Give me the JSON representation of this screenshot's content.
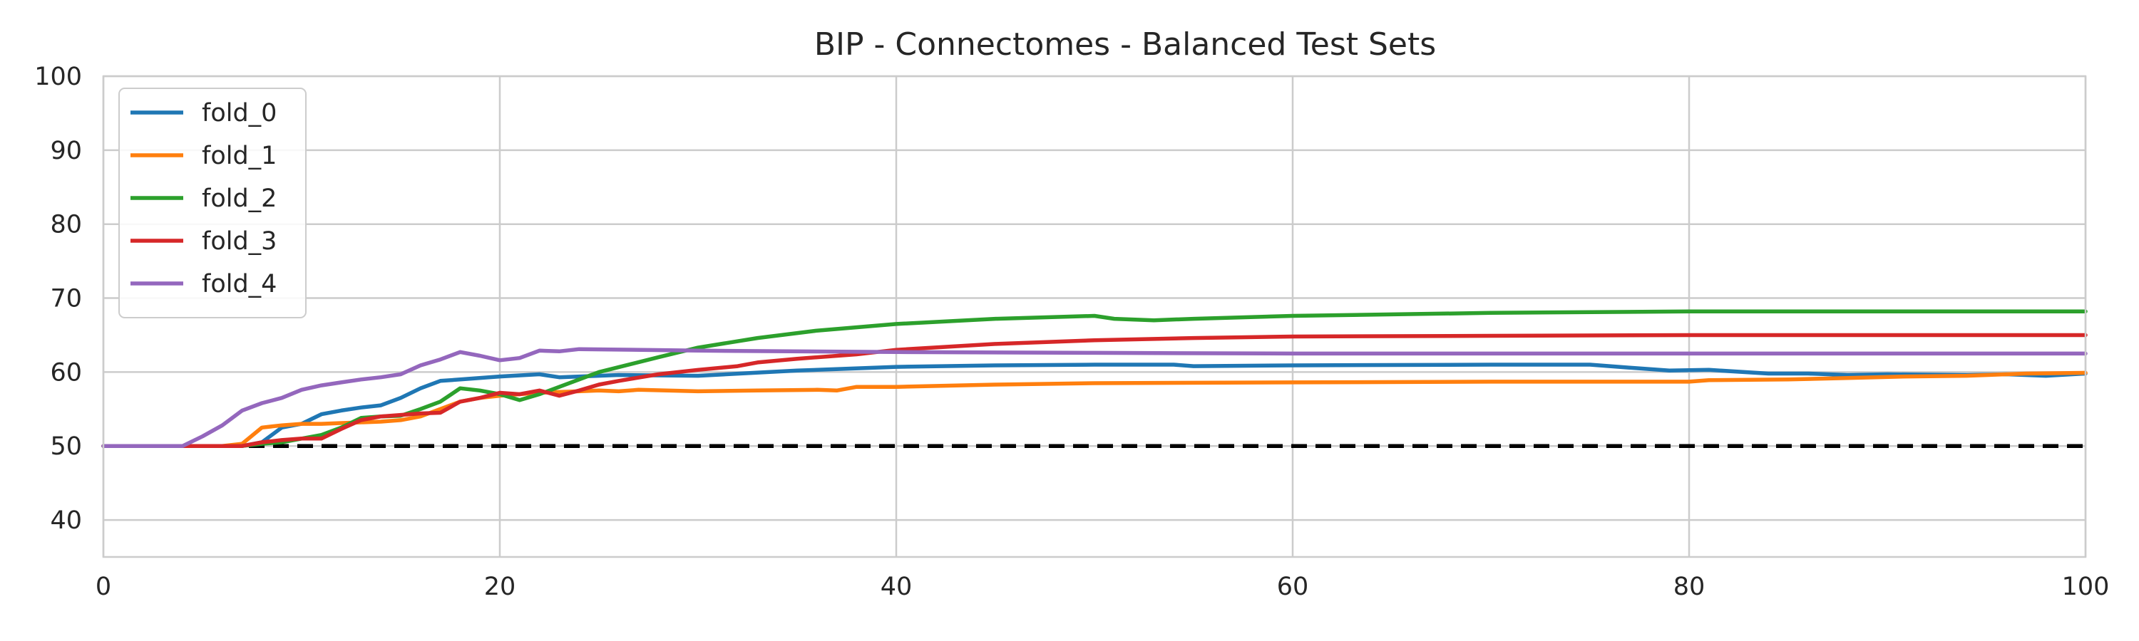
{
  "chart_data": {
    "type": "line",
    "title": "BIP - Connectomes - Balanced Test Sets",
    "xlabel": "",
    "ylabel": "",
    "xlim": [
      0,
      100
    ],
    "ylim": [
      35,
      100
    ],
    "xticks": [
      0,
      20,
      40,
      60,
      80,
      100
    ],
    "yticks": [
      40,
      50,
      60,
      70,
      80,
      90,
      100
    ],
    "grid": true,
    "legend_position": "top-left",
    "baseline": {
      "y": 50,
      "style": "dashed",
      "color": "#000000"
    },
    "series": [
      {
        "name": "fold_0",
        "color": "#1f77b4",
        "points": [
          [
            0,
            50
          ],
          [
            7,
            50
          ],
          [
            8,
            50.5
          ],
          [
            9,
            52.5
          ],
          [
            10,
            53
          ],
          [
            11,
            54.3
          ],
          [
            12,
            54.8
          ],
          [
            13,
            55.2
          ],
          [
            14,
            55.5
          ],
          [
            15,
            56.5
          ],
          [
            16,
            57.8
          ],
          [
            17,
            58.8
          ],
          [
            18,
            59
          ],
          [
            20,
            59.4
          ],
          [
            22,
            59.7
          ],
          [
            23,
            59.3
          ],
          [
            26,
            59.6
          ],
          [
            30,
            59.5
          ],
          [
            35,
            60.2
          ],
          [
            40,
            60.7
          ],
          [
            45,
            60.9
          ],
          [
            50,
            61
          ],
          [
            54,
            61
          ],
          [
            55,
            60.8
          ],
          [
            60,
            60.9
          ],
          [
            70,
            61
          ],
          [
            75,
            61
          ],
          [
            77,
            60.6
          ],
          [
            79,
            60.2
          ],
          [
            81,
            60.3
          ],
          [
            84,
            59.8
          ],
          [
            86,
            59.8
          ],
          [
            88,
            59.6
          ],
          [
            90,
            59.7
          ],
          [
            94,
            59.6
          ],
          [
            96,
            59.7
          ],
          [
            98,
            59.5
          ],
          [
            100,
            59.8
          ]
        ]
      },
      {
        "name": "fold_1",
        "color": "#ff7f0e",
        "points": [
          [
            0,
            50
          ],
          [
            6,
            50
          ],
          [
            7,
            50.3
          ],
          [
            8,
            52.5
          ],
          [
            9,
            52.8
          ],
          [
            10,
            53
          ],
          [
            11,
            53
          ],
          [
            12,
            53.1
          ],
          [
            13,
            53.2
          ],
          [
            14,
            53.3
          ],
          [
            15,
            53.5
          ],
          [
            16,
            54
          ],
          [
            17,
            55
          ],
          [
            18,
            56
          ],
          [
            19,
            56.5
          ],
          [
            20,
            56.8
          ],
          [
            21,
            57
          ],
          [
            22,
            57.2
          ],
          [
            23,
            57.3
          ],
          [
            24,
            57.4
          ],
          [
            25,
            57.5
          ],
          [
            26,
            57.4
          ],
          [
            27,
            57.6
          ],
          [
            30,
            57.4
          ],
          [
            33,
            57.5
          ],
          [
            36,
            57.6
          ],
          [
            37,
            57.5
          ],
          [
            38,
            58
          ],
          [
            40,
            58
          ],
          [
            45,
            58.3
          ],
          [
            50,
            58.5
          ],
          [
            60,
            58.6
          ],
          [
            70,
            58.7
          ],
          [
            80,
            58.7
          ],
          [
            81,
            58.9
          ],
          [
            85,
            59
          ],
          [
            88,
            59.2
          ],
          [
            91,
            59.4
          ],
          [
            94,
            59.5
          ],
          [
            97,
            59.8
          ],
          [
            100,
            59.9
          ]
        ]
      },
      {
        "name": "fold_2",
        "color": "#2ca02c",
        "points": [
          [
            0,
            50
          ],
          [
            7,
            50
          ],
          [
            8,
            50.3
          ],
          [
            9,
            50.5
          ],
          [
            10,
            51
          ],
          [
            11,
            51.5
          ],
          [
            12,
            52.5
          ],
          [
            13,
            53.8
          ],
          [
            14,
            54
          ],
          [
            15,
            54.1
          ],
          [
            16,
            55
          ],
          [
            17,
            56
          ],
          [
            18,
            57.8
          ],
          [
            19,
            57.5
          ],
          [
            20,
            57
          ],
          [
            21,
            56.2
          ],
          [
            22,
            57
          ],
          [
            23,
            58
          ],
          [
            24,
            59
          ],
          [
            25,
            60
          ],
          [
            28,
            62
          ],
          [
            30,
            63.3
          ],
          [
            33,
            64.6
          ],
          [
            36,
            65.6
          ],
          [
            40,
            66.5
          ],
          [
            45,
            67.2
          ],
          [
            50,
            67.6
          ],
          [
            51,
            67.2
          ],
          [
            53,
            67
          ],
          [
            55,
            67.2
          ],
          [
            60,
            67.6
          ],
          [
            70,
            68
          ],
          [
            80,
            68.2
          ],
          [
            90,
            68.2
          ],
          [
            100,
            68.2
          ]
        ]
      },
      {
        "name": "fold_3",
        "color": "#d62728",
        "points": [
          [
            0,
            50
          ],
          [
            7,
            50
          ],
          [
            8,
            50.5
          ],
          [
            9,
            50.8
          ],
          [
            10,
            51
          ],
          [
            11,
            51
          ],
          [
            12,
            52.3
          ],
          [
            13,
            53.5
          ],
          [
            14,
            54
          ],
          [
            15,
            54.2
          ],
          [
            16,
            54.4
          ],
          [
            17,
            54.5
          ],
          [
            18,
            56
          ],
          [
            19,
            56.5
          ],
          [
            20,
            57.2
          ],
          [
            21,
            57
          ],
          [
            22,
            57.5
          ],
          [
            23,
            56.8
          ],
          [
            24,
            57.5
          ],
          [
            25,
            58.3
          ],
          [
            26,
            58.8
          ],
          [
            28,
            59.7
          ],
          [
            30,
            60.3
          ],
          [
            32,
            60.8
          ],
          [
            33,
            61.3
          ],
          [
            35,
            61.8
          ],
          [
            38,
            62.4
          ],
          [
            40,
            63
          ],
          [
            45,
            63.8
          ],
          [
            50,
            64.3
          ],
          [
            55,
            64.6
          ],
          [
            60,
            64.8
          ],
          [
            70,
            64.9
          ],
          [
            80,
            65
          ],
          [
            90,
            65
          ],
          [
            100,
            65
          ]
        ]
      },
      {
        "name": "fold_4",
        "color": "#9467bd",
        "points": [
          [
            0,
            50
          ],
          [
            4,
            50
          ],
          [
            5,
            51.3
          ],
          [
            6,
            52.8
          ],
          [
            7,
            54.8
          ],
          [
            8,
            55.8
          ],
          [
            9,
            56.5
          ],
          [
            10,
            57.6
          ],
          [
            11,
            58.2
          ],
          [
            12,
            58.6
          ],
          [
            13,
            59
          ],
          [
            14,
            59.3
          ],
          [
            15,
            59.7
          ],
          [
            16,
            60.9
          ],
          [
            17,
            61.7
          ],
          [
            18,
            62.7
          ],
          [
            19,
            62.2
          ],
          [
            20,
            61.6
          ],
          [
            21,
            61.9
          ],
          [
            22,
            62.9
          ],
          [
            23,
            62.8
          ],
          [
            24,
            63.1
          ],
          [
            30,
            62.9
          ],
          [
            40,
            62.7
          ],
          [
            50,
            62.6
          ],
          [
            60,
            62.5
          ],
          [
            70,
            62.5
          ],
          [
            80,
            62.5
          ],
          [
            90,
            62.5
          ],
          [
            100,
            62.5
          ]
        ]
      }
    ]
  }
}
